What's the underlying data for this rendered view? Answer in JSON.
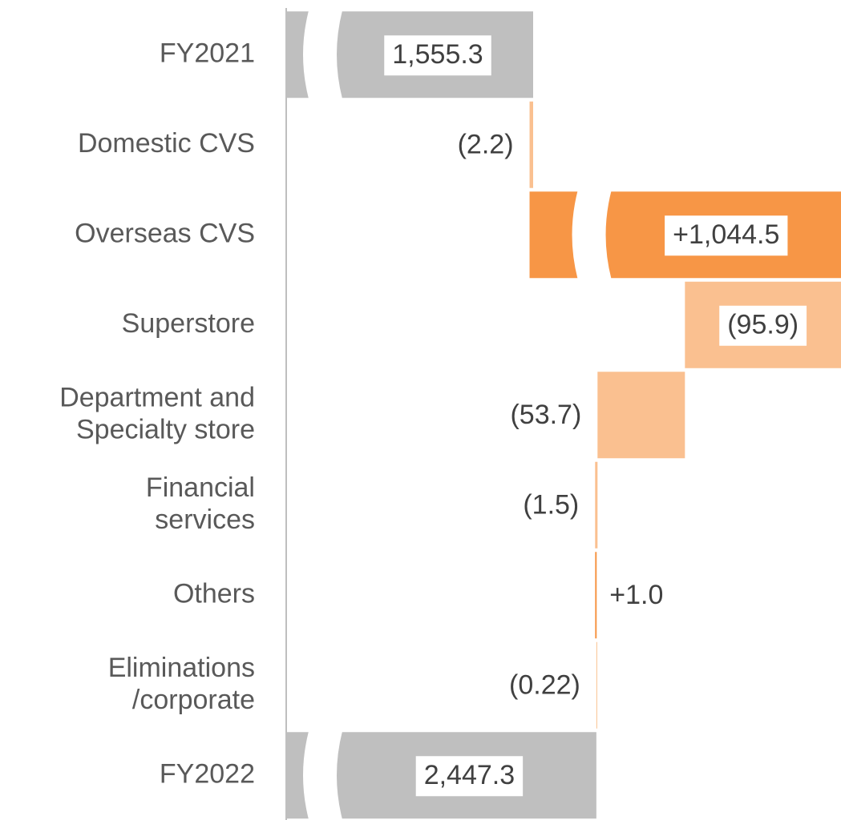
{
  "chart_data": {
    "type": "waterfall",
    "categories": [
      "FY2021",
      "Domestic CVS",
      "Overseas CVS",
      "Superstore",
      "Department and\nSpecialty store",
      "Financial\nservices",
      "Others",
      "Eliminations\n/corporate",
      "FY2022"
    ],
    "values": [
      1555.3,
      -2.2,
      1044.5,
      -95.9,
      -53.7,
      -1.5,
      1.0,
      -0.22,
      2447.3
    ],
    "value_labels": [
      "1,555.3",
      "(2.2)",
      "+1,044.5",
      "(95.9)",
      "(53.7)",
      "(1.5)",
      "+1.0",
      "(0.22)",
      "2,447.3"
    ],
    "colors": {
      "total": "#bfbfbf",
      "increase": "#f79646",
      "decrease": "#fac090"
    }
  }
}
